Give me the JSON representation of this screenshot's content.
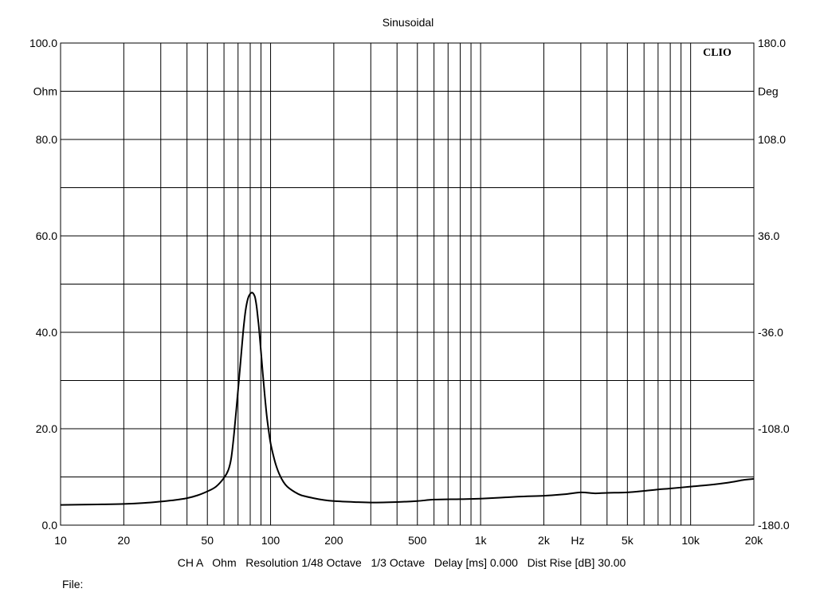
{
  "chart_data": {
    "type": "line",
    "title": "Sinusoidal",
    "brand": "CLIO",
    "x_scale": "log",
    "xlim": [
      10,
      20000
    ],
    "ylim": [
      0,
      100
    ],
    "y2lim": [
      -180,
      180
    ],
    "x_tick_labels": [
      {
        "value": 10,
        "label": "10"
      },
      {
        "value": 20,
        "label": "20"
      },
      {
        "value": 50,
        "label": "50"
      },
      {
        "value": 100,
        "label": "100"
      },
      {
        "value": 200,
        "label": "200"
      },
      {
        "value": 500,
        "label": "500"
      },
      {
        "value": 1000,
        "label": "1k"
      },
      {
        "value": 2000,
        "label": "2k"
      },
      {
        "value": 5000,
        "label": "5k"
      },
      {
        "value": 10000,
        "label": "10k"
      },
      {
        "value": 20000,
        "label": "20k"
      }
    ],
    "x_unit_label": "Hz",
    "x_unit_position_value": 2900,
    "y_ticks": [
      {
        "value": 100,
        "label": "100.0"
      },
      {
        "value": 80,
        "label": "80.0"
      },
      {
        "value": 60,
        "label": "60.0"
      },
      {
        "value": 40,
        "label": "40.0"
      },
      {
        "value": 20,
        "label": "20.0"
      },
      {
        "value": 0,
        "label": "0.0"
      }
    ],
    "y_unit_label": "Ohm",
    "y_gridlines": [
      0,
      10,
      20,
      30,
      40,
      50,
      60,
      70,
      80,
      90,
      100
    ],
    "y2_ticks": [
      {
        "value": 180,
        "label": "180.0"
      },
      {
        "value": 108,
        "label": "108.0"
      },
      {
        "value": 36,
        "label": "36.0"
      },
      {
        "value": -36,
        "label": "-36.0"
      },
      {
        "value": -108,
        "label": "-108.0"
      },
      {
        "value": -180,
        "label": "-180.0"
      }
    ],
    "y2_unit_label": "Deg",
    "grid": true,
    "series": [
      {
        "color": "#000000",
        "x": [
          10,
          15,
          20,
          25,
          30,
          35,
          40,
          45,
          50,
          55,
          60,
          63,
          65,
          67,
          70,
          72,
          74,
          76,
          78,
          80,
          82,
          84,
          85,
          86,
          87,
          88,
          90,
          92,
          94,
          96,
          98,
          100,
          103,
          106,
          110,
          115,
          120,
          130,
          140,
          160,
          180,
          200,
          250,
          300,
          400,
          500,
          600,
          800,
          1000,
          1500,
          2000,
          2500,
          3000,
          3500,
          4000,
          5000,
          6000,
          7000,
          8000,
          10000,
          12000,
          15000,
          18000,
          20000
        ],
        "y": [
          4.2,
          4.3,
          4.4,
          4.6,
          4.9,
          5.2,
          5.6,
          6.2,
          7.0,
          8.0,
          9.8,
          11.5,
          14,
          19,
          28,
          34,
          40,
          44.5,
          47,
          48,
          48.2,
          47.5,
          46.5,
          45,
          43,
          41,
          36,
          31,
          26.5,
          22.5,
          19.5,
          17.0,
          14.5,
          12.5,
          10.6,
          9.0,
          8.0,
          6.9,
          6.2,
          5.6,
          5.2,
          5.0,
          4.8,
          4.7,
          4.8,
          5.0,
          5.3,
          5.4,
          5.5,
          5.9,
          6.1,
          6.4,
          6.8,
          6.6,
          6.7,
          6.8,
          7.1,
          7.4,
          7.6,
          8.0,
          8.3,
          8.8,
          9.4,
          9.6
        ]
      }
    ]
  },
  "footer": {
    "info_line": "CH A   Ohm   Resolution 1/48 Octave   1/3 Octave   Delay [ms] 0.000   Dist Rise [dB] 30.00",
    "file_label": "File:"
  }
}
